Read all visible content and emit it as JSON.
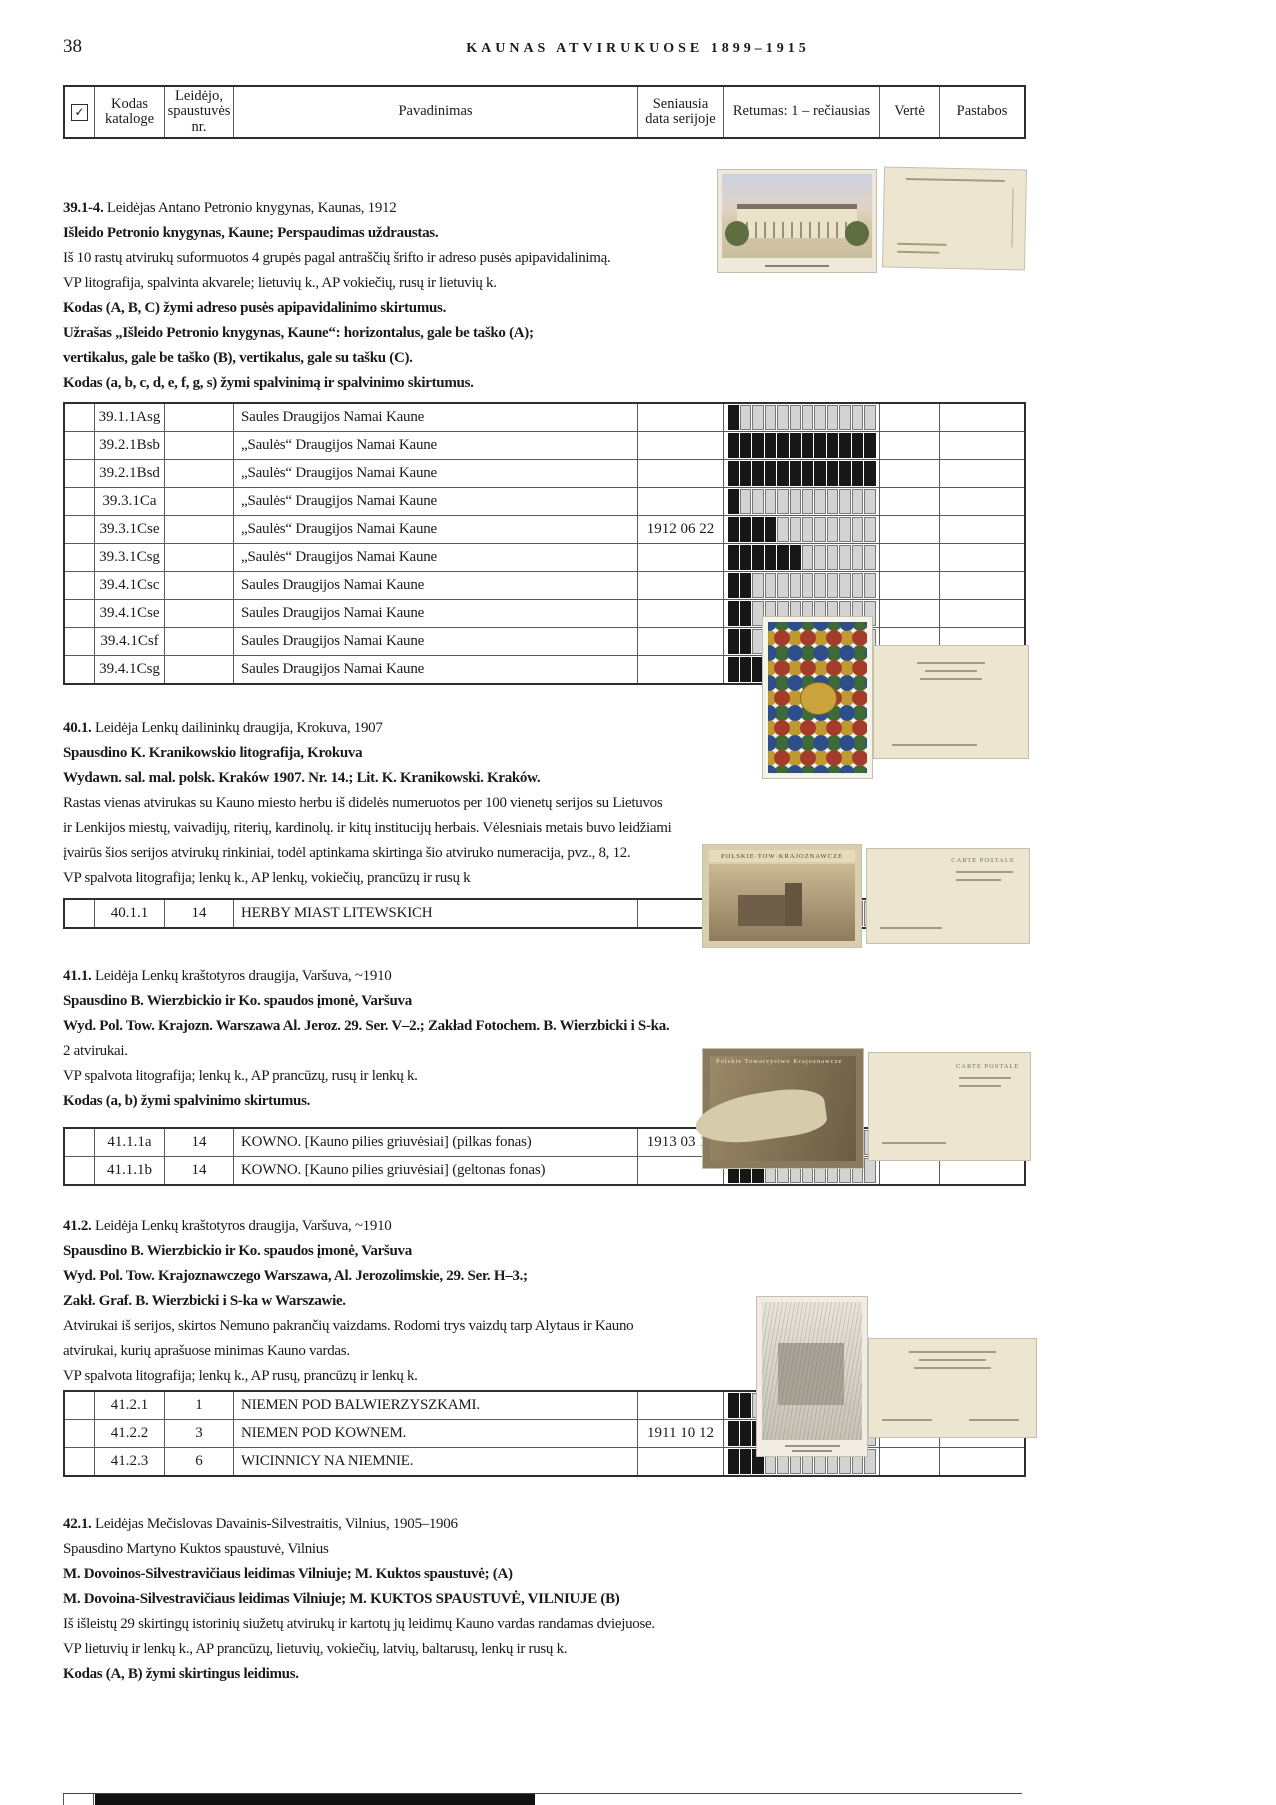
{
  "page": {
    "number": "38",
    "title": "KAUNAS ATVIRUKUOSE 1899–1915"
  },
  "table_header": {
    "check": "✓",
    "col_code": "Kodas kataloge",
    "col_printer": "Leidėjo, spaustuvės nr.",
    "col_title": "Pavadinimas",
    "col_date": "Seniausia data serijoje",
    "col_rarity": "Retumas: 1 – rečiausias",
    "col_value": "Vertė",
    "col_notes": "Pastabos"
  },
  "rarity_max": 12,
  "images": {
    "s41_1_front_title": "POLSKIE·TOW·KRAJOZNAWCZE",
    "s41_1_back_title": "CARTE POSTALE",
    "s41_2_front_title": "Polskie Towarzystwo Krajoznawcze",
    "s41_2_back_title": "CARTE POSTALE"
  },
  "sections": [
    {
      "id": "39",
      "lines": [
        {
          "bold": "39.1-4.",
          "rest": " Leidėjas Antano Petronio knygynas, Kaunas, 1912"
        },
        {
          "bold": "Išleido Petronio knygynas, Kaune; Perspaudimas uždraustas.",
          "rest": ""
        },
        {
          "bold": "",
          "rest": "Iš 10 rastų atvirukų suformuotos 4 grupės pagal antraščių šrifto ir adreso pusės apipavidalinimą."
        },
        {
          "bold": "",
          "rest": "VP litografija, spalvinta akvarele; lietuvių k., AP vokiečių, rusų ir lietuvių k."
        },
        {
          "bold": "Kodas (A, B, C) žymi adreso pusės apipavidalinimo skirtumus.",
          "rest": ""
        },
        {
          "bold": "Užrašas „Išleido Petronio knygynas, Kaune“: horizontalus, gale be taško (A);",
          "rest": ""
        },
        {
          "bold": "vertikalus, gale be taško (B), vertikalus, gale su tašku (C).",
          "rest": ""
        },
        {
          "bold": "Kodas (a, b, c, d, e, f, g, s) žymi spalvinimą ir spalvinimo skirtumus.",
          "rest": ""
        }
      ],
      "rows": [
        {
          "code": "39.1.1Asg",
          "nr": "",
          "title": "Saules Draugijos Namai Kaune",
          "date": "",
          "rarity": 1
        },
        {
          "code": "39.2.1Bsb",
          "nr": "",
          "title": "„Saulės“ Draugijos Namai Kaune",
          "date": "",
          "rarity": 12
        },
        {
          "code": "39.2.1Bsd",
          "nr": "",
          "title": "„Saulės“ Draugijos Namai Kaune",
          "date": "",
          "rarity": 12
        },
        {
          "code": "39.3.1Ca",
          "nr": "",
          "title": "„Saulės“ Draugijos Namai Kaune",
          "date": "",
          "rarity": 1
        },
        {
          "code": "39.3.1Cse",
          "nr": "",
          "title": "„Saulės“ Draugijos Namai Kaune",
          "date": "1912 06 22",
          "rarity": 4
        },
        {
          "code": "39.3.1Csg",
          "nr": "",
          "title": "„Saulės“ Draugijos Namai Kaune",
          "date": "",
          "rarity": 6
        },
        {
          "code": "39.4.1Csc",
          "nr": "",
          "title": "Saules Draugijos Namai Kaune",
          "date": "",
          "rarity": 2
        },
        {
          "code": "39.4.1Cse",
          "nr": "",
          "title": "Saules Draugijos Namai Kaune",
          "date": "",
          "rarity": 2
        },
        {
          "code": "39.4.1Csf",
          "nr": "",
          "title": "Saules Draugijos Namai Kaune",
          "date": "",
          "rarity": 2
        },
        {
          "code": "39.4.1Csg",
          "nr": "",
          "title": "Saules Draugijos Namai Kaune",
          "date": "",
          "rarity": 4
        }
      ]
    },
    {
      "id": "40",
      "lines": [
        {
          "bold": "40.1.",
          "rest": " Leidėja Lenkų dailininkų draugija, Krokuva, 1907"
        },
        {
          "bold": "Spausdino K. Kranikowskio litografija, Krokuva",
          "rest": ""
        },
        {
          "bold": "Wydawn. sal. mal. polsk. Kraków 1907. Nr. 14.; Lit. K. Kranikowski. Kraków.",
          "rest": ""
        },
        {
          "bold": "",
          "rest": "Rastas vienas atvirukas su Kauno miesto herbu iš didelės numeruotos per 100 vienetų serijos su Lietuvos"
        },
        {
          "bold": "",
          "rest": "ir Lenkijos miestų, vaivadijų, riterių, kardinolų. ir kitų institucijų herbais. Vėlesniais metais buvo leidžiami"
        },
        {
          "bold": "",
          "rest": "įvairūs šios serijos atvirukų rinkiniai, todėl aptinkama skirtinga šio atviruko numeracija, pvz., 8, 12."
        },
        {
          "bold": "",
          "rest": "VP spalvota litografija; lenkų k., AP lenkų, vokiečių, prancūzų ir rusų k"
        }
      ],
      "rows": [
        {
          "code": "40.1.1",
          "nr": "14",
          "title": "HERBY MIAST LITEWSKICH",
          "date": "",
          "rarity": 6
        }
      ]
    },
    {
      "id": "41.1",
      "lines": [
        {
          "bold": "41.1.",
          "rest": " Leidėja Lenkų kraštotyros draugija, Varšuva, ~1910"
        },
        {
          "bold": "Spausdino B. Wierzbickio ir Ko. spaudos įmonė, Varšuva",
          "rest": ""
        },
        {
          "bold": "Wyd. Pol. Tow. Krajozn. Warszawa Al. Jeroz. 29. Ser. V–2.; Zakład Fotochem. B. Wierzbicki i S-ka.",
          "rest": ""
        },
        {
          "bold": "",
          "rest": "2 atvirukai."
        },
        {
          "bold": "",
          "rest": "VP spalvota litografija; lenkų k., AP prancūzų, rusų ir lenkų k."
        },
        {
          "bold": "Kodas (a, b) žymi spalvinimo skirtumus.",
          "rest": ""
        }
      ],
      "rows": [
        {
          "code": "41.1.1a",
          "nr": "14",
          "title": "KOWNO. [Kauno pilies griuvėsiai] (pilkas fonas)",
          "date": "1913 03 16",
          "rarity": 6
        },
        {
          "code": "41.1.1b",
          "nr": "14",
          "title": "KOWNO. [Kauno pilies griuvėsiai] (geltonas fonas)",
          "date": "",
          "rarity": 3
        }
      ]
    },
    {
      "id": "41.2",
      "lines": [
        {
          "bold": "41.2.",
          "rest": " Leidėja Lenkų kraštotyros draugija, Varšuva, ~1910"
        },
        {
          "bold": "Spausdino B. Wierzbickio ir Ko. spaudos įmonė, Varšuva",
          "rest": ""
        },
        {
          "bold": "Wyd. Pol. Tow. Krajoznawczego Warszawa, Al. Jerozolimskie, 29. Ser. H–3.;",
          "rest": ""
        },
        {
          "bold": "Zakł. Graf. B. Wierzbicki i S-ka w Warszawie.",
          "rest": ""
        },
        {
          "bold": "",
          "rest": "Atvirukai iš serijos, skirtos Nemuno pakrančių vaizdams. Rodomi trys vaizdų tarp Alytaus ir Kauno"
        },
        {
          "bold": "",
          "rest": "atvirukai, kurių aprašuose minimas Kauno vardas."
        },
        {
          "bold": "",
          "rest": "VP spalvota litografija; lenkų k., AP rusų, prancūzų ir lenkų k."
        }
      ],
      "rows": [
        {
          "code": "41.2.1",
          "nr": "1",
          "title": "NIEMEN POD BALWIERZYSZKAMI.",
          "date": "",
          "rarity": 2
        },
        {
          "code": "41.2.2",
          "nr": "3",
          "title": "NIEMEN POD KOWNEM.",
          "date": "1911 10 12",
          "rarity": 10
        },
        {
          "code": "41.2.3",
          "nr": "6",
          "title": "WICINNICY NA NIEMNIE.",
          "date": "",
          "rarity": 3
        }
      ]
    },
    {
      "id": "42",
      "lines": [
        {
          "bold": "42.1.",
          "rest": " Leidėjas Mečislovas Davainis-Silvestraitis, Vilnius, 1905–1906"
        },
        {
          "bold": "",
          "rest": "Spausdino Martyno Kuktos spaustuvė, Vilnius"
        },
        {
          "bold": "M. Dovoinos-Silvestravičiaus leidimas Vilniuje; M. Kuktos spaustuvė; (A)",
          "rest": ""
        },
        {
          "bold": "M. Dovoina-Silvestravičiaus leidimas Vilniuje; M. KUKTOS SPAUSTUVĖ, VILNIUJE (B)",
          "rest": ""
        },
        {
          "bold": "",
          "rest": "Iš išleistų 29 skirtingų istorinių siužetų atvirukų ir kartotų jų leidimų Kauno vardas randamas dviejuose."
        },
        {
          "bold": "",
          "rest": "VP lietuvių ir lenkų k., AP prancūzų, lietuvių, vokiečių, latvių, baltarusų, lenkų ir rusų k."
        },
        {
          "bold": "Kodas (A, B) žymi skirtingus leidimus.",
          "rest": ""
        }
      ],
      "rows": []
    }
  ]
}
